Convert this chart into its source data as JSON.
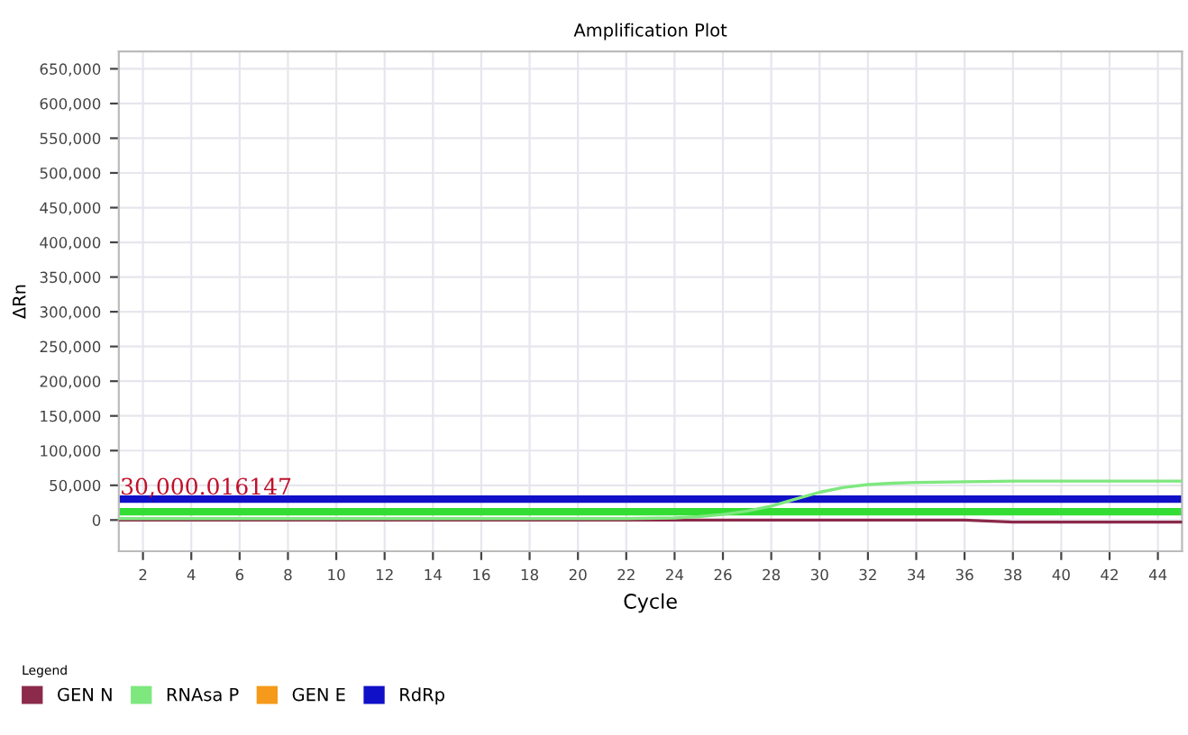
{
  "chart_data": {
    "type": "line",
    "title": "Amplification Plot",
    "xlabel": "Cycle",
    "ylabel": "ΔRn",
    "legend_title": "Legend",
    "legend": "bottom",
    "grid": true,
    "marker": "none",
    "line_style": "solid",
    "x": [
      1,
      2,
      4,
      6,
      8,
      10,
      12,
      14,
      16,
      18,
      20,
      22,
      24,
      25,
      26,
      27,
      28,
      29,
      30,
      31,
      32,
      33,
      34,
      36,
      38,
      40,
      42,
      44,
      45
    ],
    "series": [
      {
        "name": "GEN N",
        "color": "#8b2a4a",
        "values": [
          0,
          0,
          0,
          0,
          0,
          0,
          0,
          0,
          0,
          0,
          0,
          0,
          0,
          0,
          0,
          0,
          0,
          0,
          0,
          0,
          0,
          0,
          0,
          0,
          -3000,
          -3000,
          -3000,
          -3000,
          -3000
        ]
      },
      {
        "name": "RNAsa P",
        "color": "#7ee87e",
        "values": [
          2000,
          2000,
          2000,
          2000,
          2000,
          2000,
          2000,
          2000,
          2000,
          2000,
          2000,
          2000,
          3000,
          5000,
          8000,
          13000,
          20000,
          30000,
          40000,
          47000,
          51000,
          53000,
          54000,
          55000,
          56000,
          56000,
          56000,
          56000,
          56000
        ]
      },
      {
        "name": "GEN E",
        "color": "#f59a1a",
        "values": [
          null,
          null,
          null,
          null,
          null,
          null,
          null,
          null,
          null,
          null,
          null,
          null,
          null,
          null,
          null,
          null,
          null,
          null,
          null,
          null,
          null,
          null,
          null,
          null,
          null,
          null,
          null,
          null,
          null
        ]
      },
      {
        "name": "RdRp",
        "color": "#1010c8",
        "values": [
          null,
          null,
          null,
          null,
          null,
          null,
          null,
          null,
          null,
          null,
          null,
          null,
          null,
          null,
          null,
          null,
          null,
          null,
          null,
          null,
          null,
          null,
          null,
          null,
          null,
          null,
          null,
          null,
          null
        ]
      }
    ],
    "ref_lines": [
      {
        "axis": "y",
        "value": 30000.016147,
        "label": "30,000.016147",
        "color": "#1010c8"
      },
      {
        "axis": "y",
        "value": 12000,
        "color": "#33dd33"
      }
    ],
    "xlim": [
      1,
      45
    ],
    "ylim": [
      -45000,
      675000
    ],
    "xticks": [
      2,
      4,
      6,
      8,
      10,
      12,
      14,
      16,
      18,
      20,
      22,
      24,
      26,
      28,
      30,
      32,
      34,
      36,
      38,
      40,
      42,
      44
    ],
    "yticks": [
      {
        "value": 0,
        "label": "0"
      },
      {
        "value": 50000,
        "label": "50,000"
      },
      {
        "value": 100000,
        "label": "100,000"
      },
      {
        "value": 150000,
        "label": "150,000"
      },
      {
        "value": 200000,
        "label": "200,000"
      },
      {
        "value": 250000,
        "label": "250,000"
      },
      {
        "value": 300000,
        "label": "300,000"
      },
      {
        "value": 350000,
        "label": "350,000"
      },
      {
        "value": 400000,
        "label": "400,000"
      },
      {
        "value": 450000,
        "label": "450,000"
      },
      {
        "value": 500000,
        "label": "500,000"
      },
      {
        "value": 550000,
        "label": "550,000"
      },
      {
        "value": 600000,
        "label": "600,000"
      },
      {
        "value": 650000,
        "label": "650,000"
      }
    ]
  }
}
